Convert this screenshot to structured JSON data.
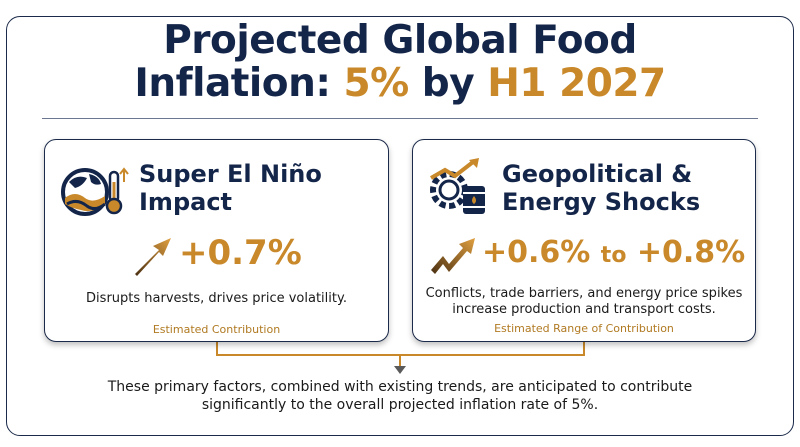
{
  "title": {
    "line1": "Projected Global Food",
    "line2_prefix": "Inflation: ",
    "line2_accent_1": "5%",
    "line2_mid": " by ",
    "line2_accent_2": "H1 2027"
  },
  "cards": [
    {
      "title_line1": "Super El Niño",
      "title_line2": "Impact",
      "icon": "globe-wave-thermometer-icon",
      "stat": "+0.7%",
      "description": "Disrupts harvests, drives price volatility.",
      "caption": "Estimated Contribution"
    },
    {
      "title_line1": "Geopolitical &",
      "title_line2": "Energy Shocks",
      "icon": "gear-oil-barrel-trend-icon",
      "stat_low": "+0.6%",
      "stat_to": "to",
      "stat_high": "+0.8%",
      "description_line1": "Conflicts, trade barriers, and energy price spikes",
      "description_line2": "increase production and transport costs.",
      "caption": "Estimated Range of Contribution"
    }
  ],
  "summary_line1": "These primary factors, combined with existing trends, are anticipated to contribute",
  "summary_line2": "significantly to the overall projected inflation rate of 5%.",
  "colors": {
    "navy": "#14254a",
    "gold": "#c9892a"
  }
}
